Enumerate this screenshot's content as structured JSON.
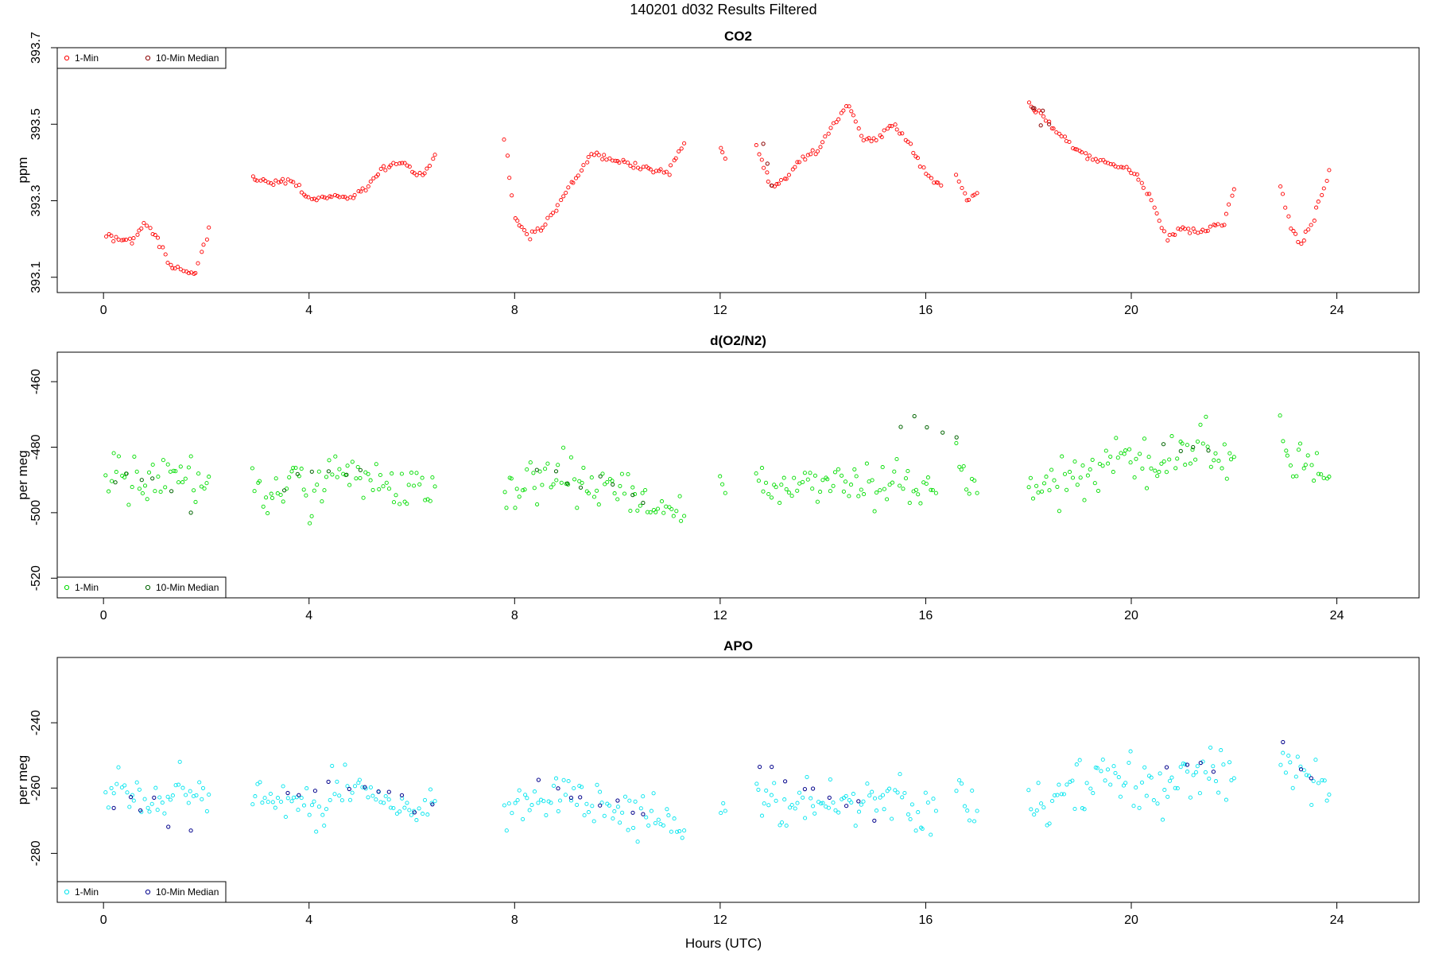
{
  "page_title": "140201   d032   Results Filtered",
  "x_axis_label": "Hours (UTC)",
  "chart_data": [
    {
      "type": "scatter",
      "title": "CO2",
      "xlabel": "",
      "ylabel": "ppm",
      "xlim": [
        -0.9,
        25.6
      ],
      "ylim": [
        393.06,
        393.7
      ],
      "xticks": [
        0,
        4,
        8,
        12,
        16,
        20,
        24
      ],
      "yticks": [
        393.1,
        393.3,
        393.5,
        393.7
      ],
      "ytick_labels": [
        "393.1",
        "393.3",
        "393.5",
        "393.7"
      ],
      "legend": {
        "position": "top-left",
        "entries": [
          "1-Min",
          "10-Min Median"
        ]
      },
      "colors": {
        "one_min": "#ff0000",
        "median": "#8b0000"
      },
      "series": [
        {
          "name": "1-Min",
          "segments": [
            {
              "x": [
                0.05,
                0.3,
                0.55,
                0.8,
                1.05,
                1.3,
                1.55,
                1.8,
                2.05
              ],
              "y": [
                393.21,
                393.2,
                393.19,
                393.24,
                393.2,
                393.13,
                393.12,
                393.11,
                393.23
              ]
            },
            {
              "x": [
                2.9,
                3.3,
                3.7,
                4.0,
                4.4,
                4.8,
                5.1,
                5.4,
                5.8,
                6.2,
                6.45
              ],
              "y": [
                393.36,
                393.35,
                393.35,
                393.3,
                393.31,
                393.31,
                393.33,
                393.38,
                393.4,
                393.36,
                393.42
              ]
            },
            {
              "x": [
                7.8,
                8.0,
                8.3,
                8.6,
                8.9,
                9.2,
                9.5,
                9.8,
                10.1,
                10.4,
                10.7,
                11.0,
                11.3
              ],
              "y": [
                393.47,
                393.25,
                393.21,
                393.24,
                393.3,
                393.36,
                393.42,
                393.41,
                393.4,
                393.39,
                393.38,
                393.37,
                393.45
              ]
            },
            {
              "x": [
                12.0,
                12.1
              ],
              "y": [
                393.43,
                393.41
              ]
            },
            {
              "x": [
                12.7,
                13.0,
                13.3,
                13.6,
                13.9,
                14.2,
                14.5,
                14.8,
                15.1,
                15.4,
                15.7,
                16.0,
                16.3
              ],
              "y": [
                393.44,
                393.33,
                393.36,
                393.41,
                393.43,
                393.5,
                393.55,
                393.46,
                393.47,
                393.5,
                393.44,
                393.37,
                393.34
              ]
            },
            {
              "x": [
                16.6,
                16.8,
                17.0
              ],
              "y": [
                393.37,
                393.3,
                393.32
              ]
            },
            {
              "x": [
                18.0,
                18.3,
                18.6,
                18.9,
                19.2,
                19.5,
                19.8,
                20.1,
                20.4,
                20.7,
                21.0,
                21.4,
                21.8,
                22.0
              ],
              "y": [
                393.55,
                393.52,
                393.47,
                393.44,
                393.41,
                393.4,
                393.39,
                393.37,
                393.3,
                393.2,
                393.23,
                393.22,
                393.24,
                393.33
              ]
            },
            {
              "x": [
                22.9,
                23.1,
                23.3,
                23.5,
                23.85
              ],
              "y": [
                393.34,
                393.23,
                393.19,
                393.23,
                393.38
              ]
            }
          ]
        },
        {
          "name": "10-Min Median",
          "segments": [
            {
              "x": [
                18.0,
                18.2,
                18.4
              ],
              "y": [
                393.55,
                393.53,
                393.5
              ]
            },
            {
              "x": [
                12.75,
                13.0
              ],
              "y": [
                393.44,
                393.34
              ]
            }
          ]
        }
      ]
    },
    {
      "type": "scatter",
      "title": "d(O2/N2)",
      "xlabel": "",
      "ylabel": "per meg",
      "xlim": [
        -0.9,
        25.6
      ],
      "ylim": [
        -526,
        -451
      ],
      "xticks": [
        0,
        4,
        8,
        12,
        16,
        20,
        24
      ],
      "yticks": [
        -520,
        -500,
        -480,
        -460
      ],
      "ytick_labels": [
        "-520",
        "-500",
        "-480",
        "-460"
      ],
      "legend": {
        "position": "bottom-left",
        "entries": [
          "1-Min",
          "10-Min Median"
        ]
      },
      "colors": {
        "one_min": "#00dd00",
        "median": "#006400"
      },
      "series": [
        {
          "name": "1-Min",
          "segments": [
            {
              "x": [
                0.05,
                0.3,
                0.55,
                0.8,
                1.05,
                1.3,
                1.55,
                1.8,
                2.05
              ],
              "y": [
                -491,
                -488,
                -490,
                -494,
                -492,
                -489,
                -486,
                -493,
                -489
              ]
            },
            {
              "x": [
                2.9,
                3.3,
                3.7,
                4.1,
                4.5,
                4.9,
                5.3,
                5.7,
                6.1,
                6.45
              ],
              "y": [
                -489,
                -494,
                -492,
                -495,
                -490,
                -487,
                -491,
                -493,
                -494,
                -492
              ]
            },
            {
              "x": [
                7.8,
                8.2,
                8.6,
                9.0,
                9.4,
                9.8,
                10.2,
                10.6,
                11.0,
                11.3
              ],
              "y": [
                -492,
                -490,
                -491,
                -489,
                -493,
                -494,
                -492,
                -496,
                -497,
                -501
              ]
            },
            {
              "x": [
                12.0,
                12.1
              ],
              "y": [
                -493,
                -494
              ]
            },
            {
              "x": [
                12.7,
                13.1,
                13.5,
                13.9,
                14.3,
                14.7,
                15.1,
                15.5,
                15.9,
                16.2
              ],
              "y": [
                -489,
                -493,
                -490,
                -492,
                -491,
                -490,
                -492,
                -488,
                -495,
                -494
              ]
            },
            {
              "x": [
                16.6,
                16.8,
                17.0
              ],
              "y": [
                -483,
                -492,
                -494
              ]
            },
            {
              "x": [
                18.0,
                18.4,
                18.8,
                19.2,
                19.6,
                20.0,
                20.4,
                20.8,
                21.2,
                21.6,
                22.0
              ],
              "y": [
                -490,
                -492,
                -488,
                -487,
                -483,
                -484,
                -488,
                -484,
                -481,
                -481,
                -483
              ]
            },
            {
              "x": [
                22.9,
                23.2,
                23.5,
                23.85
              ],
              "y": [
                -475,
                -483,
                -486,
                -489
              ]
            }
          ]
        },
        {
          "name": "10-Min Median",
          "segments": [
            {
              "x": [
                0.2,
                1.0,
                1.7
              ],
              "y": [
                -490,
                -489,
                -500
              ]
            },
            {
              "x": [
                3.5,
                5.0
              ],
              "y": [
                -490,
                -487
              ]
            },
            {
              "x": [
                8.5,
                10.5
              ],
              "y": [
                -486,
                -497
              ]
            },
            {
              "x": [
                15.5,
                16.6
              ],
              "y": [
                -470,
                -477
              ]
            },
            {
              "x": [
                20.7,
                21.5
              ],
              "y": [
                -480,
                -481
              ]
            }
          ]
        }
      ]
    },
    {
      "type": "scatter",
      "title": "APO",
      "xlabel": "Hours (UTC)",
      "ylabel": "per meg",
      "xlim": [
        -0.9,
        25.6
      ],
      "ylim": [
        -295,
        -220
      ],
      "xticks": [
        0,
        4,
        8,
        12,
        16,
        20,
        24
      ],
      "yticks": [
        -280,
        -260,
        -240
      ],
      "ytick_labels": [
        "-280",
        "-260",
        "-240"
      ],
      "legend": {
        "position": "bottom-left",
        "entries": [
          "1-Min",
          "10-Min Median"
        ]
      },
      "colors": {
        "one_min": "#00e5ee",
        "median": "#00008b"
      },
      "series": [
        {
          "name": "1-Min",
          "segments": [
            {
              "x": [
                0.05,
                0.3,
                0.55,
                0.8,
                1.05,
                1.3,
                1.55,
                1.8,
                2.05
              ],
              "y": [
                -262,
                -260,
                -262,
                -266,
                -264,
                -261,
                -258,
                -265,
                -262
              ]
            },
            {
              "x": [
                2.9,
                3.3,
                3.7,
                4.1,
                4.5,
                4.9,
                5.3,
                5.7,
                6.1,
                6.45
              ],
              "y": [
                -261,
                -266,
                -264,
                -267,
                -262,
                -259,
                -263,
                -265,
                -266,
                -264
              ]
            },
            {
              "x": [
                7.8,
                8.2,
                8.6,
                9.0,
                9.4,
                9.8,
                10.2,
                10.6,
                11.0,
                11.3
              ],
              "y": [
                -265,
                -263,
                -264,
                -262,
                -266,
                -267,
                -265,
                -269,
                -270,
                -273
              ]
            },
            {
              "x": [
                12.0,
                12.1
              ],
              "y": [
                -266,
                -267
              ]
            },
            {
              "x": [
                12.7,
                13.1,
                13.5,
                13.9,
                14.3,
                14.7,
                15.1,
                15.5,
                15.9,
                16.2
              ],
              "y": [
                -262,
                -266,
                -263,
                -265,
                -264,
                -263,
                -265,
                -261,
                -268,
                -267
              ]
            },
            {
              "x": [
                16.6,
                16.8,
                17.0
              ],
              "y": [
                -256,
                -265,
                -267
              ]
            },
            {
              "x": [
                18.0,
                18.4,
                18.8,
                19.2,
                19.6,
                20.0,
                20.4,
                20.8,
                21.2,
                21.6,
                22.0
              ],
              "y": [
                -261,
                -263,
                -260,
                -260,
                -256,
                -258,
                -262,
                -259,
                -256,
                -256,
                -257
              ]
            },
            {
              "x": [
                22.9,
                23.2,
                23.5,
                23.85
              ],
              "y": [
                -250,
                -256,
                -259,
                -262
              ]
            }
          ]
        },
        {
          "name": "10-Min Median",
          "segments": [
            {
              "x": [
                0.2,
                1.0,
                1.7
              ],
              "y": [
                -262,
                -266,
                -273
              ]
            },
            {
              "x": [
                3.5,
                5.0,
                6.4
              ],
              "y": [
                -263,
                -259,
                -265
              ]
            },
            {
              "x": [
                8.5,
                10.5
              ],
              "y": [
                -258,
                -268
              ]
            },
            {
              "x": [
                12.7,
                15.0
              ],
              "y": [
                -252,
                -270
              ]
            },
            {
              "x": [
                20.7,
                21.6
              ],
              "y": [
                -252,
                -255
              ]
            },
            {
              "x": [
                23.0,
                23.5
              ],
              "y": [
                -245,
                -257
              ]
            }
          ]
        }
      ]
    }
  ]
}
